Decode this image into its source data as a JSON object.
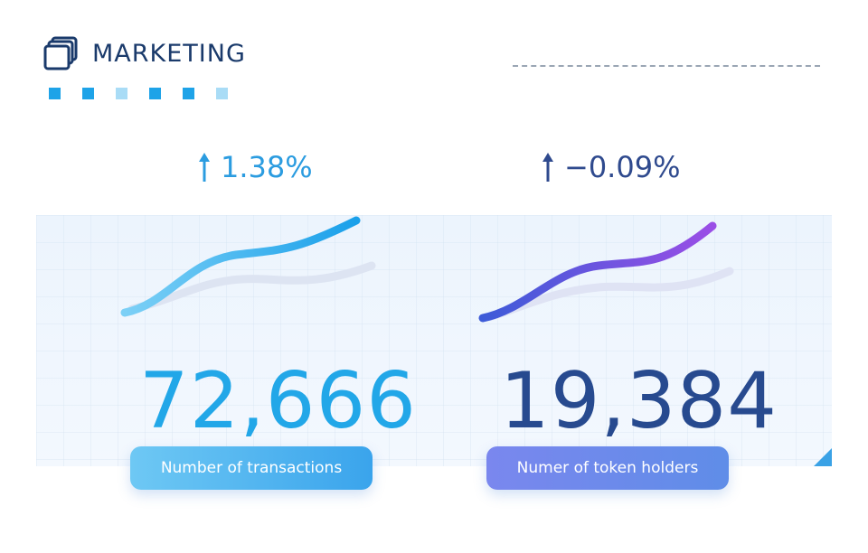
{
  "header": {
    "title": "MARKETING",
    "icon": "stacked-windows-icon",
    "decor_squares": [
      "#1ea3e8",
      "#1ea3e8",
      "#a9dcf6",
      "#1ea3e8",
      "#1ea3e8",
      "#a9dcf6"
    ]
  },
  "metrics": [
    {
      "change": "1.38%",
      "value": "72,666",
      "label": "Number of  transactions",
      "color": "#22a7e8",
      "trend": "up"
    },
    {
      "change": "−0.09%",
      "value": "19,384",
      "label": "Numer of token holders",
      "color": "#274a8f",
      "trend": "up"
    }
  ]
}
